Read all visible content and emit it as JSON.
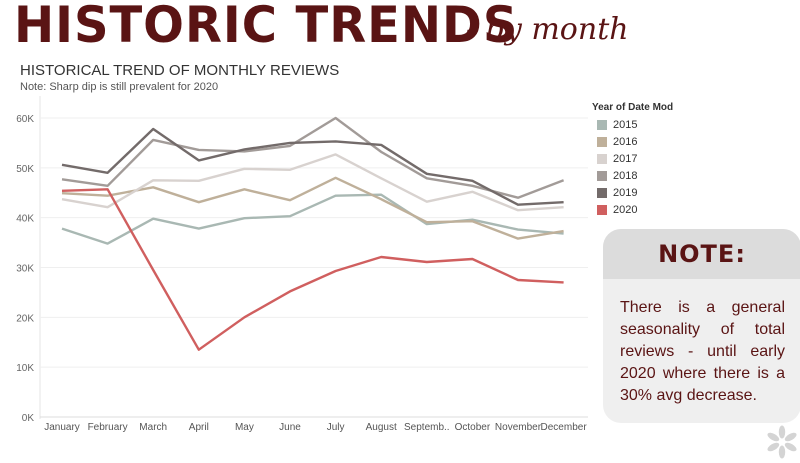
{
  "header": {
    "title": "HISTORIC TRENDS",
    "subtitle": "- by month"
  },
  "chart_title": "HISTORICAL TREND OF MONTHLY REVIEWS",
  "chart_note": "Note: Sharp dip is still prevalent for 2020",
  "legend": {
    "title": "Year of Date Mod"
  },
  "note": {
    "heading": "NOTE:",
    "body": "There is a general seasonality of total reviews - until early 2020 where there is a 30% avg decrease."
  },
  "logo": {
    "icon": "pinwheel-logo-icon",
    "color": "#d4d4d4"
  },
  "chart_data": {
    "type": "line",
    "categories": [
      "January",
      "February",
      "March",
      "April",
      "May",
      "June",
      "July",
      "August",
      "Septemb..",
      "October",
      "November",
      "December"
    ],
    "y_ticks": [
      "0K",
      "10K",
      "20K",
      "30K",
      "40K",
      "50K",
      "60K"
    ],
    "ylim": [
      0,
      60000
    ],
    "grid": true,
    "legend_position": "right",
    "series": [
      {
        "name": "2015",
        "color": "#a9b8b3",
        "values": [
          37800,
          34800,
          39800,
          37800,
          39900,
          40300,
          44400,
          44600,
          38700,
          39600,
          37600,
          36800
        ]
      },
      {
        "name": "2016",
        "color": "#bfb09a",
        "values": [
          44900,
          44400,
          46100,
          43100,
          45700,
          43500,
          48000,
          43700,
          39100,
          39300,
          35800,
          37300
        ]
      },
      {
        "name": "2017",
        "color": "#d8d2cf",
        "values": [
          43700,
          42100,
          47500,
          47400,
          49800,
          49600,
          52700,
          47900,
          43200,
          45200,
          41500,
          42100
        ]
      },
      {
        "name": "2018",
        "color": "#a29b98",
        "values": [
          47700,
          46400,
          55600,
          53600,
          53300,
          54400,
          60000,
          53200,
          47900,
          46400,
          44000,
          47500
        ]
      },
      {
        "name": "2019",
        "color": "#736b6a",
        "values": [
          50600,
          49000,
          57800,
          51500,
          53700,
          55000,
          55300,
          54600,
          48800,
          47400,
          42600,
          43100
        ]
      },
      {
        "name": "2020",
        "color": "#d05f5f",
        "values": [
          45400,
          45700,
          29500,
          13500,
          20000,
          25200,
          29300,
          32100,
          31100,
          31700,
          27500,
          27000
        ]
      }
    ]
  }
}
